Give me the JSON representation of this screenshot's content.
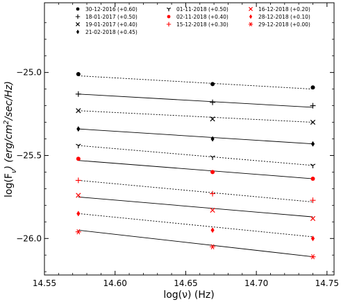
{
  "chart_data": {
    "type": "scatter",
    "xlabel": "log(ν) (Hz)",
    "ylabel_parts": [
      "log(F",
      "ν",
      ") (erg/cm",
      "2",
      "/sec/Hz)"
    ],
    "xlim": [
      14.55,
      14.755
    ],
    "ylim": [
      -26.22,
      -24.58
    ],
    "xticks": [
      14.55,
      14.6,
      14.65,
      14.7,
      14.75
    ],
    "xtick_labels": [
      "14.55",
      "14.60",
      "14.65",
      "14.70",
      "14.75"
    ],
    "yticks": [
      -25.0,
      -25.5,
      -26.0
    ],
    "ytick_labels": [
      "−25.0",
      "−25.5",
      "−26.0"
    ],
    "x": [
      14.574,
      14.669,
      14.74
    ],
    "legend_position": "top",
    "series": [
      {
        "name": "30-12-2016 (+0.60)",
        "marker": "circle",
        "color": "#000000",
        "line": "dotted",
        "values": [
          -25.01,
          -25.07,
          -25.09
        ],
        "fit": [
          -25.02,
          -25.1
        ]
      },
      {
        "name": "18-01-2017 (+0.50)",
        "marker": "plus",
        "color": "#000000",
        "line": "solid",
        "values": [
          -25.13,
          -25.18,
          -25.2
        ],
        "fit": [
          -25.13,
          -25.21
        ]
      },
      {
        "name": "19-01-2017 (+0.40)",
        "marker": "x",
        "color": "#000000",
        "line": "dotted",
        "values": [
          -25.23,
          -25.28,
          -25.3
        ],
        "fit": [
          -25.23,
          -25.3
        ]
      },
      {
        "name": "21-02-2018 (+0.45)",
        "marker": "diamond",
        "color": "#000000",
        "line": "solid",
        "values": [
          -25.34,
          -25.4,
          -25.43
        ],
        "fit": [
          -25.34,
          -25.43
        ]
      },
      {
        "name": "01-11-2018 (+0.50)",
        "marker": "tri_down",
        "color": "#000000",
        "line": "dotted",
        "values": [
          -25.44,
          -25.51,
          -25.56
        ],
        "fit": [
          -25.44,
          -25.56
        ]
      },
      {
        "name": "02-11-2018 (+0.40)",
        "marker": "circle",
        "color": "#ff0000",
        "line": "solid",
        "values": [
          -25.52,
          -25.6,
          -25.64
        ],
        "fit": [
          -25.53,
          -25.64
        ]
      },
      {
        "name": "15-12-2018 (+0.30)",
        "marker": "plus",
        "color": "#ff0000",
        "line": "dotted",
        "values": [
          -25.65,
          -25.73,
          -25.77
        ],
        "fit": [
          -25.65,
          -25.78
        ]
      },
      {
        "name": "16-12-2018 (+0.20)",
        "marker": "x",
        "color": "#ff0000",
        "line": "solid",
        "values": [
          -25.74,
          -25.83,
          -25.88
        ],
        "fit": [
          -25.75,
          -25.87
        ]
      },
      {
        "name": "28-12-2018 (+0.10)",
        "marker": "diamond",
        "color": "#ff0000",
        "line": "dotted",
        "values": [
          -25.85,
          -25.95,
          -26.0
        ],
        "fit": [
          -25.85,
          -25.99
        ]
      },
      {
        "name": "29-12-2018 (+0.00)",
        "marker": "asterisk",
        "color": "#ff0000",
        "line": "solid",
        "values": [
          -25.96,
          -26.05,
          -26.11
        ],
        "fit": [
          -25.95,
          -26.11
        ]
      }
    ]
  }
}
